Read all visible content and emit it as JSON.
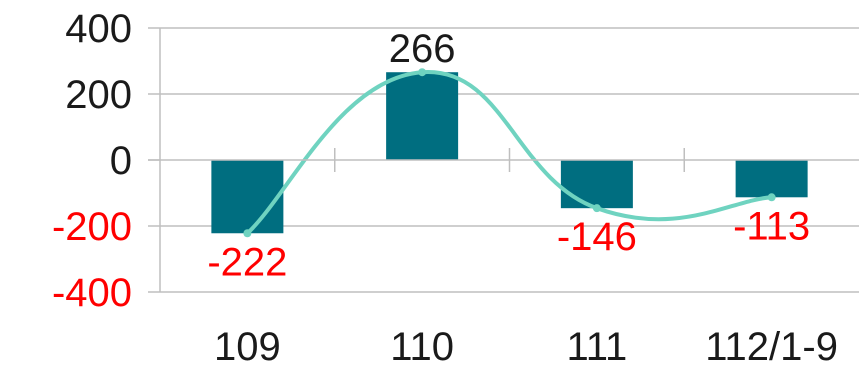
{
  "chart_data": {
    "type": "bar",
    "title": "",
    "xlabel": "",
    "ylabel": "",
    "categories": [
      "109",
      "110",
      "111",
      "112/1-9"
    ],
    "values": [
      -222,
      266,
      -146,
      -113
    ],
    "data_labels": [
      "-222",
      "266",
      "-146",
      "-113"
    ],
    "ylim": [
      -400,
      400
    ],
    "y_ticks": [
      {
        "value": 400,
        "label": "400"
      },
      {
        "value": 200,
        "label": "200"
      },
      {
        "value": 0,
        "label": "0"
      },
      {
        "value": -200,
        "label": "-200"
      },
      {
        "value": -400,
        "label": "-400"
      }
    ],
    "grid": true,
    "legend": "none",
    "trend_line": "smooth",
    "colors": {
      "bar": "#006e80",
      "trend": "#6fd3c0",
      "negative_text": "#ff0000",
      "positive_text": "#1a1a1a",
      "grid": "#bfbfbf"
    }
  }
}
